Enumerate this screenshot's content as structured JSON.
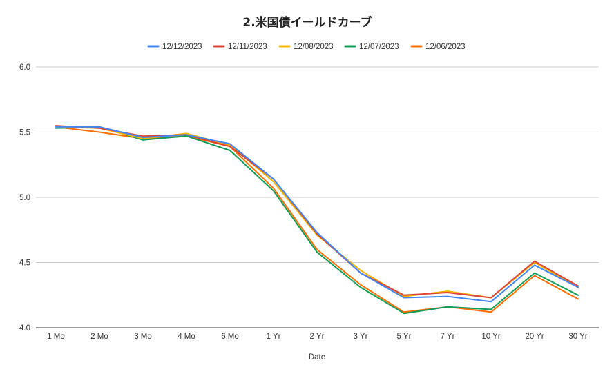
{
  "chart_data": {
    "type": "line",
    "title": "2.米国債イールドカーブ",
    "xlabel": "Date",
    "ylabel": "",
    "categories": [
      "1 Mo",
      "2 Mo",
      "3 Mo",
      "4 Mo",
      "6 Mo",
      "1 Yr",
      "2 Yr",
      "3 Yr",
      "5 Yr",
      "7 Yr",
      "10 Yr",
      "20 Yr",
      "30 Yr"
    ],
    "ylim": [
      4.0,
      6.0
    ],
    "yticks": [
      "4.0",
      "4.5",
      "5.0",
      "5.5",
      "6.0"
    ],
    "grid": true,
    "legend_position": "top",
    "series": [
      {
        "name": "12/12/2023",
        "color": "#4285f4",
        "values": [
          5.54,
          5.54,
          5.46,
          5.48,
          5.41,
          5.14,
          4.73,
          4.42,
          4.23,
          4.24,
          4.2,
          4.48,
          4.31
        ]
      },
      {
        "name": "12/11/2023",
        "color": "#db4437",
        "values": [
          5.55,
          5.53,
          5.47,
          5.48,
          5.39,
          5.14,
          4.72,
          4.42,
          4.25,
          4.27,
          4.23,
          4.51,
          4.32
        ]
      },
      {
        "name": "12/08/2023",
        "color": "#f4b400",
        "values": [
          5.54,
          5.53,
          5.45,
          5.49,
          5.4,
          5.12,
          4.71,
          4.44,
          4.24,
          4.28,
          4.23,
          4.5,
          4.31
        ]
      },
      {
        "name": "12/07/2023",
        "color": "#0f9d58",
        "values": [
          5.53,
          5.54,
          5.44,
          5.47,
          5.36,
          5.05,
          4.58,
          4.31,
          4.11,
          4.16,
          4.14,
          4.42,
          4.25
        ]
      },
      {
        "name": "12/06/2023",
        "color": "#ff6d01",
        "values": [
          5.54,
          5.5,
          5.45,
          5.47,
          5.39,
          5.07,
          4.6,
          4.33,
          4.12,
          4.16,
          4.12,
          4.4,
          4.22
        ]
      }
    ]
  }
}
